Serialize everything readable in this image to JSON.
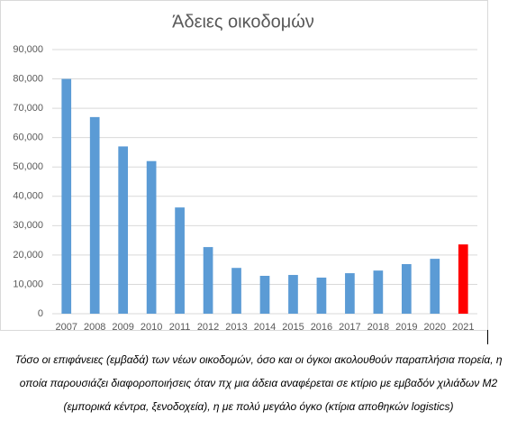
{
  "chart_data": {
    "type": "bar",
    "title": "Άδειες οικοδομών",
    "categories": [
      "2007",
      "2008",
      "2009",
      "2010",
      "2011",
      "2012",
      "2013",
      "2014",
      "2015",
      "2016",
      "2017",
      "2018",
      "2019",
      "2020",
      "2021"
    ],
    "values": [
      80000,
      67000,
      57000,
      52000,
      36200,
      22700,
      15600,
      12900,
      13200,
      12300,
      13800,
      14700,
      16900,
      18700,
      23600
    ],
    "colors": [
      "#5b9bd5",
      "#5b9bd5",
      "#5b9bd5",
      "#5b9bd5",
      "#5b9bd5",
      "#5b9bd5",
      "#5b9bd5",
      "#5b9bd5",
      "#5b9bd5",
      "#5b9bd5",
      "#5b9bd5",
      "#5b9bd5",
      "#5b9bd5",
      "#5b9bd5",
      "#ff0000"
    ],
    "ylim": [
      0,
      90000
    ],
    "yticks": [
      0,
      {
        "value": 10000,
        "label": "10,000"
      },
      {
        "value": 20000,
        "label": "20,000"
      },
      {
        "value": 30000,
        "label": "30,000"
      },
      {
        "value": 40000,
        "label": "40,000"
      },
      {
        "value": 50000,
        "label": "50,000"
      },
      {
        "value": 60000,
        "label": "60,000"
      },
      {
        "value": 70000,
        "label": "70,000"
      },
      {
        "value": 80000,
        "label": "80,000"
      },
      {
        "value": 90000,
        "label": "90,000"
      }
    ],
    "grid": true
  },
  "caption": "Τόσο οι επιφάνειες (εμβαδά) των νέων οικοδομών, όσο και οι όγκοι ακολουθούν παραπλήσια πορεία, η οποία παρουσιάζει διαφοροποιήσεις όταν πχ μια άδεια αναφέρεται σε κτίριο με εμβαδόν χιλιάδων Μ2 (εμπορικά κέντρα, ξενοδοχεία), η με πολύ μεγάλο όγκο (κτίρια αποθηκών logistics)"
}
